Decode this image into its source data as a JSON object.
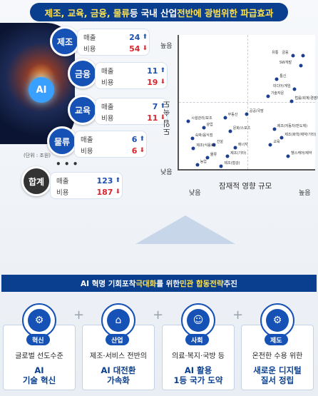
{
  "title": {
    "part1": "제조, 교육, 금융, 물류",
    "part2": " 등 국내 산업 ",
    "part3": "전반에 광범위한 파급효과"
  },
  "sectors": [
    {
      "name": "제조",
      "sales": "24",
      "cost": "54",
      "sales_label": "매출",
      "cost_label": "비용"
    },
    {
      "name": "금융",
      "sales": "11",
      "cost": "19",
      "sales_label": "매출",
      "cost_label": "비용"
    },
    {
      "name": "교육",
      "sales": "7",
      "cost": "11",
      "sales_label": "매출",
      "cost_label": "비용"
    },
    {
      "name": "물류",
      "sales": "6",
      "cost": "6",
      "sales_label": "매출",
      "cost_label": "비용"
    }
  ],
  "total": {
    "name": "합계",
    "sales": "123",
    "cost": "187",
    "sales_label": "매출",
    "cost_label": "비용"
  },
  "unit_note": "(단위 : 조원)",
  "ellipsis": "• • •",
  "art_label": "AI",
  "chart_data": {
    "type": "scatter",
    "xlabel": "잠재적 영향 규모",
    "ylabel": "도입 속도",
    "x_low": "낮음",
    "x_high": "높음",
    "y_low": "낮음",
    "y_high": "높음",
    "points": [
      {
        "label": "유통",
        "x": 0.86,
        "y": 0.88
      },
      {
        "label": "금융",
        "x": 0.94,
        "y": 0.88
      },
      {
        "label": "SW개발",
        "x": 0.92,
        "y": 0.8
      },
      {
        "label": "통신",
        "x": 0.73,
        "y": 0.69
      },
      {
        "label": "미디어/게임",
        "x": 0.87,
        "y": 0.61
      },
      {
        "label": "기술자문",
        "x": 0.66,
        "y": 0.55
      },
      {
        "label": "법률/회계/경영자문",
        "x": 0.85,
        "y": 0.51
      },
      {
        "label": "부동산",
        "x": 0.32,
        "y": 0.38
      },
      {
        "label": "공공/국방",
        "x": 0.49,
        "y": 0.41
      },
      {
        "label": "시설관리/보조",
        "x": 0.03,
        "y": 0.35
      },
      {
        "label": "제조(자동차/반도체)",
        "x": 0.71,
        "y": 0.29
      },
      {
        "label": "숙박/음식점",
        "x": 0.06,
        "y": 0.21
      },
      {
        "label": "광업",
        "x": 0.15,
        "y": 0.3
      },
      {
        "label": "문화/스포츠",
        "x": 0.36,
        "y": 0.27
      },
      {
        "label": "제조(화학/제약/기타)",
        "x": 0.77,
        "y": 0.22
      },
      {
        "label": "교육",
        "x": 0.68,
        "y": 0.16
      },
      {
        "label": "건설",
        "x": 0.23,
        "y": 0.16
      },
      {
        "label": "헬스케어/제약",
        "x": 0.82,
        "y": 0.07
      },
      {
        "label": "제조(식음료)",
        "x": 0.07,
        "y": 0.13
      },
      {
        "label": "에너지",
        "x": 0.4,
        "y": 0.14
      },
      {
        "label": "제조(기타)",
        "x": 0.34,
        "y": 0.07
      },
      {
        "label": "물류",
        "x": 0.18,
        "y": 0.06
      },
      {
        "label": "농업",
        "x": 0.1,
        "y": 0.0
      },
      {
        "label": "제조(철강)",
        "x": 0.29,
        "y": -0.01
      }
    ]
  },
  "strategy_title": {
    "p1": "AI 혁명 기회포착 ",
    "p2": "극대화",
    "p3": "를 위한 ",
    "p4": "민관 합동전략",
    "p5": " 추진"
  },
  "cards": [
    {
      "tag": "혁신",
      "desc": "글로벌 선도수준",
      "main1": "AI",
      "main2": "기술 혁신"
    },
    {
      "tag": "산업",
      "desc": "제조·서비스 전반의",
      "main1": "AI 대전환",
      "main2": "가속화"
    },
    {
      "tag": "사회",
      "desc": "의료·복지·국방 등",
      "main1": "AI 활용",
      "main2": "1등 국가 도약"
    },
    {
      "tag": "제도",
      "desc": "온전한 수용 위한",
      "main1": "새로운 디지털",
      "main2": "질서 정립"
    }
  ],
  "colors": {
    "navy": "#0a3f8f",
    "blue": "#1652b5",
    "red": "#d8262e",
    "yellow": "#ffe14d"
  }
}
